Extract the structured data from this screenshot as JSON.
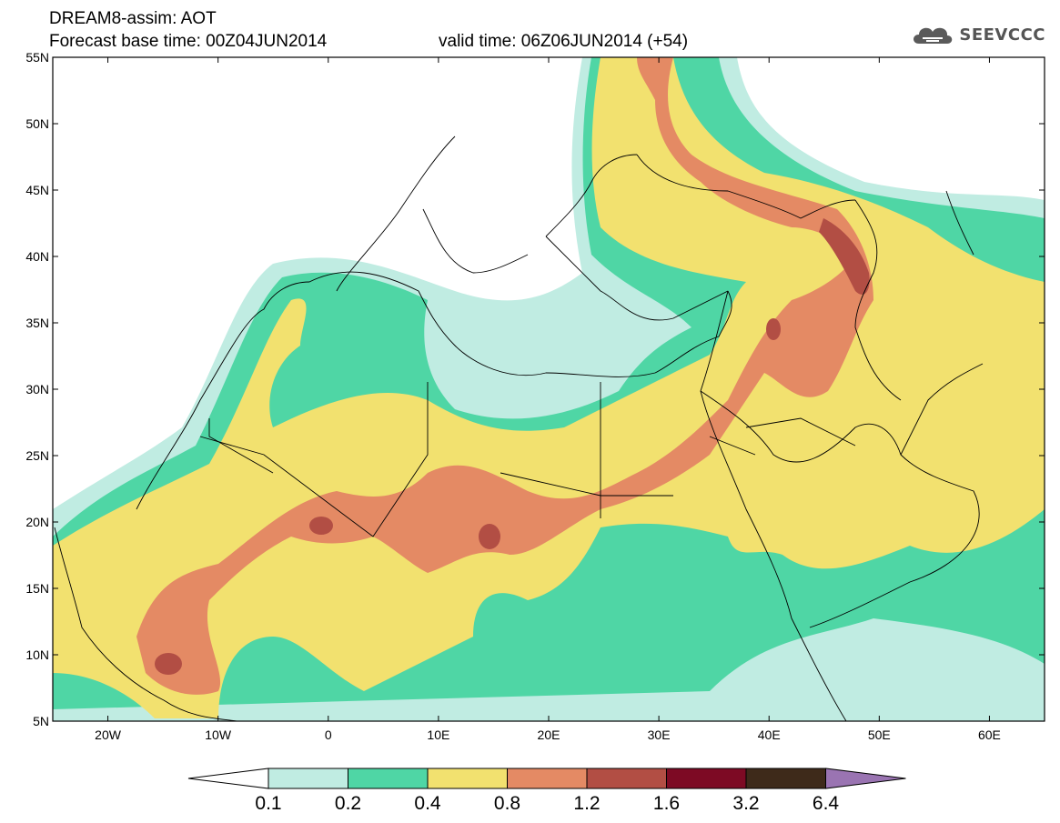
{
  "header": {
    "title_line_1": "DREAM8-assim: AOT",
    "title_line_2": "Forecast base time: 00Z04JUN2014",
    "valid_time": "valid time: 06Z06JUN2014 (+54)"
  },
  "logo": {
    "text": "SEEVCCC",
    "icon": "cloud-icon"
  },
  "map": {
    "lat_labels": [
      "55N",
      "50N",
      "45N",
      "40N",
      "35N",
      "30N",
      "25N",
      "20N",
      "15N",
      "10N",
      "5N"
    ],
    "lon_labels": [
      "20W",
      "10W",
      "0",
      "10E",
      "20E",
      "30E",
      "40E",
      "50E",
      "60E"
    ],
    "lon_range": [
      -25,
      65
    ],
    "lat_range": [
      5,
      55
    ]
  },
  "colorbar": {
    "labels": [
      "0.1",
      "0.2",
      "0.4",
      "0.8",
      "1.2",
      "1.6",
      "3.2",
      "6.4"
    ],
    "colors": [
      "#ffffff",
      "#c0ece2",
      "#4fd6a5",
      "#f2e16f",
      "#e48a64",
      "#b24e44",
      "#7d0a24",
      "#3e2a1a",
      "#9a74b2"
    ]
  },
  "palette": {
    "c1": "#c0ece2",
    "c2": "#4fd6a5",
    "c3": "#f2e16f",
    "c4": "#e48a64",
    "c5": "#b24e44"
  }
}
